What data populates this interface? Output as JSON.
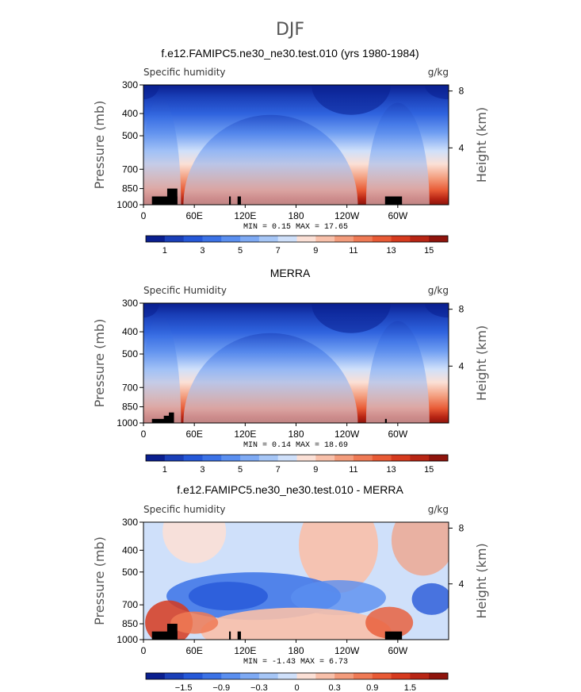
{
  "figure": {
    "title": "DJF"
  },
  "chart_data": [
    {
      "type": "heatmap",
      "title": "f.e12.FAMIPC5.ne30_ne30.test.010 (yrs 1980-1984)",
      "left_label": "Specific humidity",
      "units": "g/kg",
      "ylabel": "Pressure (mb)",
      "y2label": "Height (km)",
      "y_ticks": [
        "300",
        "400",
        "500",
        "700",
        "850",
        "1000"
      ],
      "y_tick_values": [
        300,
        400,
        500,
        700,
        850,
        1000
      ],
      "y2_ticks": [
        "8",
        "4"
      ],
      "y2_tick_values": [
        8,
        4
      ],
      "x_ticks": [
        "0",
        "60E",
        "120E",
        "180",
        "120W",
        "60W"
      ],
      "x_tick_values": [
        0,
        60,
        120,
        180,
        240,
        300
      ],
      "xlim": [
        0,
        360
      ],
      "ylim": [
        1000,
        300
      ],
      "min_max_text": "MIN =    0.15   MAX =   17.65",
      "min": 0.15,
      "max": 17.65,
      "colorbar": {
        "ticks": [
          "1",
          "3",
          "5",
          "7",
          "9",
          "11",
          "13",
          "15"
        ],
        "levels": [
          0,
          1,
          2,
          3,
          4,
          5,
          6,
          7,
          8,
          9,
          10,
          11,
          12,
          13,
          14,
          15,
          16
        ],
        "colors": [
          "#0a1f8f",
          "#1a3fb8",
          "#2558d8",
          "#3b72e6",
          "#5a8ff0",
          "#7eaaf4",
          "#a6c6f6",
          "#cfe0fa",
          "#fbe0d6",
          "#f8c0aa",
          "#f39c7c",
          "#ef7a55",
          "#e85a35",
          "#d63a1e",
          "#b82514",
          "#8f140c"
        ]
      }
    },
    {
      "type": "heatmap",
      "title": "MERRA",
      "left_label": "Specific Humidity",
      "units": "g/kg",
      "ylabel": "Pressure (mb)",
      "y2label": "Height (km)",
      "y_ticks": [
        "300",
        "400",
        "500",
        "700",
        "850",
        "1000"
      ],
      "y_tick_values": [
        300,
        400,
        500,
        700,
        850,
        1000
      ],
      "y2_ticks": [
        "8",
        "4"
      ],
      "y2_tick_values": [
        8,
        4
      ],
      "x_ticks": [
        "0",
        "60E",
        "120E",
        "180",
        "120W",
        "60W"
      ],
      "x_tick_values": [
        0,
        60,
        120,
        180,
        240,
        300
      ],
      "xlim": [
        0,
        360
      ],
      "ylim": [
        1000,
        300
      ],
      "min_max_text": "MIN =    0.14   MAX =   18.69",
      "min": 0.14,
      "max": 18.69,
      "colorbar": {
        "ticks": [
          "1",
          "3",
          "5",
          "7",
          "9",
          "11",
          "13",
          "15"
        ],
        "levels": [
          0,
          1,
          2,
          3,
          4,
          5,
          6,
          7,
          8,
          9,
          10,
          11,
          12,
          13,
          14,
          15,
          16
        ],
        "colors": [
          "#0a1f8f",
          "#1a3fb8",
          "#2558d8",
          "#3b72e6",
          "#5a8ff0",
          "#7eaaf4",
          "#a6c6f6",
          "#cfe0fa",
          "#fbe0d6",
          "#f8c0aa",
          "#f39c7c",
          "#ef7a55",
          "#e85a35",
          "#d63a1e",
          "#b82514",
          "#8f140c"
        ]
      }
    },
    {
      "type": "heatmap",
      "title": "f.e12.FAMIPC5.ne30_ne30.test.010 - MERRA",
      "left_label": "Specific humidity",
      "units": "g/kg",
      "ylabel": "Pressure (mb)",
      "y2label": "Height (km)",
      "y_ticks": [
        "300",
        "400",
        "500",
        "700",
        "850",
        "1000"
      ],
      "y_tick_values": [
        300,
        400,
        500,
        700,
        850,
        1000
      ],
      "y2_ticks": [
        "8",
        "4"
      ],
      "y2_tick_values": [
        8,
        4
      ],
      "x_ticks": [
        "0",
        "60E",
        "120E",
        "180",
        "120W",
        "60W"
      ],
      "x_tick_values": [
        0,
        60,
        120,
        180,
        240,
        300
      ],
      "xlim": [
        0,
        360
      ],
      "ylim": [
        1000,
        300
      ],
      "min_max_text": "MIN =   -1.43   MAX =    6.73",
      "min": -1.43,
      "max": 6.73,
      "colorbar": {
        "ticks": [
          "−1.5",
          "−0.9",
          "−0.3",
          "0",
          "0.3",
          "0.9",
          "1.5"
        ],
        "colors": [
          "#0a1f8f",
          "#1a3fb8",
          "#2558d8",
          "#3b72e6",
          "#5a8ff0",
          "#7eaaf4",
          "#a6c6f6",
          "#cfe0fa",
          "#fbe0d6",
          "#f8c0aa",
          "#f39c7c",
          "#ef7a55",
          "#e85a35",
          "#d63a1e",
          "#b82514",
          "#8f140c"
        ]
      }
    }
  ]
}
